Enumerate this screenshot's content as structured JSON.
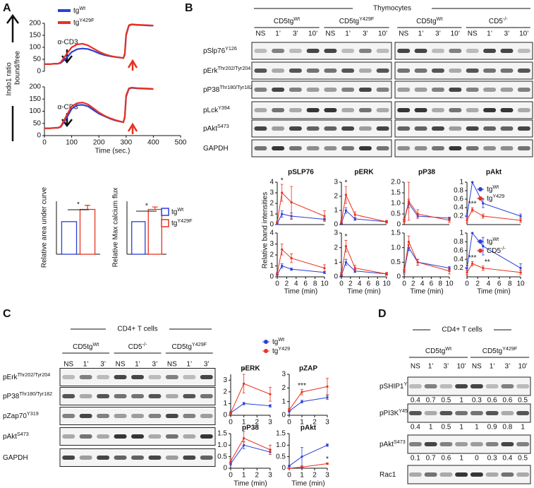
{
  "panel_labels": [
    "A",
    "B",
    "C",
    "D"
  ],
  "chart_data": [
    {
      "type": "line",
      "y_label": "Indo1 ratio",
      "y_label_sub": "bound/free",
      "annotation": "α-CD3",
      "x": [
        0,
        20,
        40,
        50,
        60,
        80,
        100,
        120,
        140,
        160,
        180,
        200,
        220,
        240,
        260,
        280,
        290,
        295,
        300,
        310,
        320,
        340,
        360,
        380,
        400
      ],
      "xlim": [
        0,
        500
      ],
      "ylim": [
        0,
        200
      ],
      "yticks": [
        0,
        50,
        100,
        150,
        200
      ],
      "series": [
        {
          "name": "tg",
          "name_sup": "Wt",
          "color": "#2b3fd9",
          "values": [
            30,
            30,
            32,
            32,
            35,
            55,
            80,
            92,
            95,
            93,
            85,
            75,
            68,
            63,
            60,
            57,
            55,
            70,
            150,
            190,
            195,
            193,
            192,
            191,
            190
          ]
        },
        {
          "name": "tg",
          "name_sup": "Y429F",
          "color": "#e8321f",
          "values": [
            30,
            30,
            32,
            32,
            38,
            70,
            100,
            112,
            115,
            108,
            95,
            82,
            72,
            65,
            60,
            57,
            55,
            75,
            155,
            192,
            196,
            194,
            193,
            192,
            191
          ]
        }
      ]
    },
    {
      "type": "line",
      "x_label": "Time (sec.)",
      "annotation": "α-CD3",
      "x": [
        0,
        20,
        40,
        50,
        60,
        80,
        100,
        120,
        140,
        160,
        180,
        200,
        220,
        240,
        260,
        280,
        290,
        295,
        300,
        310,
        320,
        340,
        360,
        380,
        400
      ],
      "xlim": [
        0,
        500
      ],
      "xticks": [
        0,
        100,
        200,
        300,
        400,
        500
      ],
      "ylim": [
        0,
        200
      ],
      "yticks": [
        0,
        50,
        100,
        150,
        200
      ],
      "series": [
        {
          "color": "#2b3fd9",
          "values": [
            30,
            30,
            32,
            32,
            36,
            70,
            110,
            125,
            126,
            120,
            105,
            90,
            80,
            70,
            62,
            57,
            55,
            75,
            160,
            192,
            196,
            194,
            193,
            192,
            191
          ]
        },
        {
          "color": "#e8321f",
          "values": [
            30,
            30,
            32,
            32,
            38,
            80,
            120,
            133,
            136,
            128,
            112,
            95,
            82,
            72,
            64,
            58,
            55,
            78,
            165,
            194,
            197,
            195,
            194,
            193,
            192
          ]
        }
      ]
    },
    {
      "type": "bar",
      "y_label": "Relative area under curve",
      "annotations": [
        "*"
      ],
      "categories": [
        null
      ],
      "ylim": [
        60,
        125
      ],
      "series": [
        {
          "color": "#2b3fd9",
          "values": [
            100
          ],
          "errors": [
            0
          ]
        },
        {
          "color": "#e8321f",
          "values": [
            115
          ],
          "errors": [
            5
          ]
        }
      ]
    },
    {
      "type": "bar",
      "y_label": "Relative Max calcium flux",
      "annotations": [
        "*"
      ],
      "categories": [
        null
      ],
      "ylim": [
        60,
        125
      ],
      "series": [
        {
          "name": "tg",
          "name_sup": "Wt",
          "color": "#2b3fd9",
          "values": [
            100
          ],
          "errors": [
            0
          ]
        },
        {
          "name": "tg",
          "name_sup": "Y429F",
          "color": "#e8321f",
          "values": [
            115
          ],
          "errors": [
            3
          ]
        }
      ]
    },
    {
      "type": "line",
      "title": "pSLP76",
      "y_label": "Relative band intensities",
      "annotations": [
        "*"
      ],
      "x": [
        0,
        1,
        3,
        10
      ],
      "xlim": [
        0,
        10
      ],
      "ylim": [
        0,
        4
      ],
      "yticks": [
        0,
        1,
        2,
        3,
        4
      ],
      "series": [
        {
          "color": "#2b3fd9",
          "values": [
            0.1,
            1.0,
            0.8,
            0.5
          ],
          "errors": [
            0.1,
            0.3,
            0.3,
            0.1
          ]
        },
        {
          "color": "#e8321f",
          "values": [
            0.2,
            3.0,
            2.1,
            0.8
          ],
          "errors": [
            0.1,
            0.8,
            1.5,
            0.5
          ]
        }
      ]
    },
    {
      "type": "line",
      "title": "pERK",
      "annotations": [
        "*"
      ],
      "x": [
        0,
        1,
        3,
        10
      ],
      "xlim": [
        0,
        10
      ],
      "ylim": [
        0,
        3
      ],
      "yticks": [
        0,
        1,
        2,
        3
      ],
      "series": [
        {
          "color": "#2b3fd9",
          "values": [
            0.1,
            1.0,
            0.4,
            0.2
          ],
          "errors": [
            0.05,
            0.2,
            0.1,
            0.05
          ]
        },
        {
          "color": "#e8321f",
          "values": [
            0.2,
            2.1,
            0.7,
            0.2
          ],
          "errors": [
            0.1,
            0.6,
            0.2,
            0.1
          ]
        }
      ]
    },
    {
      "type": "line",
      "title": "pP38",
      "x": [
        0,
        1,
        3,
        10
      ],
      "xlim": [
        0,
        10
      ],
      "ylim": [
        0,
        2
      ],
      "yticks": [
        0,
        0.5,
        {
          "value": 1,
          "label": "1.0"
        },
        1.5,
        {
          "value": 2,
          "label": "2.0"
        }
      ],
      "series": [
        {
          "color": "#2b3fd9",
          "values": [
            0.2,
            1.0,
            0.4,
            0.3
          ],
          "errors": [
            0.05,
            0.2,
            0.1,
            0.05
          ]
        },
        {
          "color": "#e8321f",
          "values": [
            0.2,
            1.1,
            0.5,
            0.2
          ],
          "errors": [
            0.1,
            0.9,
            0.2,
            0.1
          ]
        }
      ]
    },
    {
      "type": "line",
      "title": "pAkt",
      "annotations": [
        "***"
      ],
      "x": [
        0,
        1,
        3,
        10
      ],
      "xlim": [
        0,
        10
      ],
      "ylim": [
        0,
        1
      ],
      "yticks": [
        0.2,
        0.4,
        0.6,
        0.8,
        1
      ],
      "series": [
        {
          "name": "tg",
          "name_sup": "Wt",
          "color": "#2b3fd9",
          "values": [
            0.2,
            1.0,
            0.5,
            0.2
          ],
          "errors": [
            0.05,
            0,
            0.1,
            0.05
          ]
        },
        {
          "name": "tg",
          "name_sup": "Y429",
          "color": "#e8321f",
          "values": [
            0.1,
            0.35,
            0.2,
            0.1
          ],
          "errors": [
            0.05,
            0.05,
            0.05,
            0.05
          ]
        }
      ]
    },
    {
      "type": "line",
      "x_label": "Time (min)",
      "x": [
        0,
        1,
        3,
        10
      ],
      "xlim": [
        0,
        10
      ],
      "xticks": [
        0,
        2,
        4,
        6,
        8,
        10
      ],
      "ylim": [
        0,
        4
      ],
      "yticks": [
        0,
        1,
        2,
        3,
        4
      ],
      "series": [
        {
          "color": "#2b3fd9",
          "values": [
            0.2,
            1.0,
            0.7,
            0.4
          ],
          "errors": [
            0.05,
            0.2,
            0.1,
            0.1
          ]
        },
        {
          "color": "#e8321f",
          "values": [
            0.3,
            2.5,
            1.7,
            0.8
          ],
          "errors": [
            0.1,
            0.5,
            0.4,
            0.3
          ]
        }
      ]
    },
    {
      "type": "line",
      "x_label": "Time (min)",
      "annotations": [
        "*"
      ],
      "x": [
        0,
        1,
        3,
        10
      ],
      "xlim": [
        0,
        10
      ],
      "xticks": [
        0,
        2,
        4,
        6,
        8,
        10
      ],
      "ylim": [
        0,
        3
      ],
      "yticks": [
        0,
        1,
        2,
        3
      ],
      "series": [
        {
          "color": "#2b3fd9",
          "values": [
            0.1,
            1.0,
            0.4,
            0.2
          ],
          "errors": [
            0.05,
            0.2,
            0.1,
            0.05
          ]
        },
        {
          "color": "#e8321f",
          "values": [
            0.2,
            2.1,
            0.6,
            0.2
          ],
          "errors": [
            0.1,
            0.4,
            0.2,
            0.1
          ]
        }
      ]
    },
    {
      "type": "line",
      "x_label": "Time (min)",
      "x": [
        0,
        1,
        3,
        10
      ],
      "xlim": [
        0,
        10
      ],
      "xticks": [
        0,
        2,
        4,
        6,
        8,
        10
      ],
      "ylim": [
        0,
        1.5
      ],
      "yticks": [
        0,
        0.5,
        {
          "value": 1,
          "label": "1.0"
        },
        1.5
      ],
      "series": [
        {
          "color": "#2b3fd9",
          "values": [
            0.2,
            1.0,
            0.5,
            0.3
          ],
          "errors": [
            0.05,
            0.1,
            0.1,
            0.05
          ]
        },
        {
          "color": "#e8321f",
          "values": [
            0.2,
            1.2,
            0.5,
            0.2
          ],
          "errors": [
            0.1,
            0.2,
            0.1,
            0.1
          ]
        }
      ]
    },
    {
      "type": "line",
      "x_label": "Time (min)",
      "annotations": [
        "***",
        "**"
      ],
      "x": [
        0,
        1,
        3,
        10
      ],
      "xlim": [
        0,
        10
      ],
      "xticks": [
        0,
        2,
        4,
        6,
        8,
        10
      ],
      "ylim": [
        0,
        1
      ],
      "yticks": [
        0.2,
        0.4,
        0.6,
        0.8,
        1
      ],
      "series": [
        {
          "name": "tg",
          "name_sup": "Wt",
          "color": "#2b3fd9",
          "values": [
            0.2,
            1.0,
            0.7,
            0.2
          ],
          "errors": [
            0.05,
            0,
            0.2,
            0.1
          ]
        },
        {
          "name": "CD5",
          "name_sup": "-/-",
          "color": "#e8321f",
          "values": [
            0.1,
            0.3,
            0.2,
            0.1
          ],
          "errors": [
            0.05,
            0.05,
            0.05,
            0.05
          ]
        }
      ]
    },
    {
      "type": "line",
      "title": "pERK",
      "annotations": [
        "*"
      ],
      "x": [
        0,
        1,
        3
      ],
      "xlim": [
        0,
        3
      ],
      "xticks": [
        0,
        1,
        2,
        3
      ],
      "ylim": [
        0,
        3.5
      ],
      "yticks": [
        0,
        1,
        2,
        3
      ],
      "series": [
        {
          "color": "#2b3fd9",
          "values": [
            0.2,
            1.0,
            0.8
          ],
          "errors": [
            0.05,
            0.1,
            0.1
          ]
        },
        {
          "color": "#e8321f",
          "values": [
            0.2,
            2.7,
            1.8
          ],
          "errors": [
            0.1,
            0.8,
            0.6
          ]
        }
      ]
    },
    {
      "type": "line",
      "title": "pZAP",
      "annotations": [
        "***"
      ],
      "x": [
        0,
        1,
        3
      ],
      "xlim": [
        0,
        3
      ],
      "xticks": [
        0,
        1,
        2,
        3
      ],
      "ylim": [
        0,
        3
      ],
      "yticks": [
        0,
        1,
        2,
        3
      ],
      "series": [
        {
          "name": "tg",
          "name_sup": "Wt",
          "color": "#2b3fd9",
          "values": [
            0.3,
            1.0,
            1.3
          ],
          "errors": [
            0.05,
            0.1,
            0.15
          ]
        },
        {
          "name": "tg",
          "name_sup": "Y429",
          "color": "#e8321f",
          "values": [
            0.4,
            1.7,
            2.1
          ],
          "errors": [
            0.1,
            0.2,
            0.6
          ]
        }
      ]
    },
    {
      "type": "line",
      "title": "pP38",
      "x_label": "Time (min)",
      "x": [
        0,
        1,
        3
      ],
      "xlim": [
        0,
        3
      ],
      "xticks": [
        0,
        1,
        2,
        3
      ],
      "ylim": [
        0,
        1.5
      ],
      "yticks": [
        0,
        0.5,
        {
          "value": 1,
          "label": "1.0"
        },
        1.5
      ],
      "series": [
        {
          "color": "#2b3fd9",
          "values": [
            0.2,
            1.0,
            0.7
          ],
          "errors": [
            0.05,
            0.15,
            0.1
          ]
        },
        {
          "color": "#e8321f",
          "values": [
            0.3,
            1.3,
            0.8
          ],
          "errors": [
            0.1,
            0.3,
            0.2
          ]
        }
      ]
    },
    {
      "type": "line",
      "title": "pAkt",
      "x_label": "Time (min)",
      "annotations": [
        "*"
      ],
      "x": [
        0,
        1,
        3
      ],
      "xlim": [
        0,
        3
      ],
      "xticks": [
        0,
        1,
        2,
        3
      ],
      "ylim": [
        0,
        1.5
      ],
      "yticks": [
        0,
        0.5,
        {
          "value": 1,
          "label": "1.0"
        },
        1.5
      ],
      "series": [
        {
          "color": "#2b3fd9",
          "values": [
            0.1,
            0.5,
            1.0
          ],
          "errors": [
            0.02,
            0.4,
            0.05
          ]
        },
        {
          "color": "#e8321f",
          "values": [
            0.0,
            0.05,
            0.2
          ],
          "errors": [
            0.01,
            0.02,
            0.03
          ]
        }
      ]
    }
  ],
  "blots": {
    "B": {
      "header": "Thymocytes",
      "groups": [
        {
          "text": "CD5tg",
          "sup": "Wt"
        },
        {
          "text": "CD5tg",
          "sup": "Y429F"
        },
        {
          "text": "CD5tg",
          "sup": "Wt"
        },
        {
          "text": "CD5",
          "sup": "-/-"
        }
      ],
      "lanes": [
        "NS",
        "1’",
        "3’",
        "10’",
        "NS",
        "1’",
        "3’",
        "10’",
        "NS",
        "1’",
        "3’",
        "10’",
        "NS",
        "1’",
        "3’",
        "10’"
      ],
      "rows": [
        {
          "text": "pSlp76",
          "sup": "Y126"
        },
        {
          "text": "pErk",
          "sup": "Thr202/Tyr204"
        },
        {
          "text": "pP38",
          "sup": "Thr180/Tyr182"
        },
        {
          "text": "pLck",
          "sup": "Y394"
        },
        {
          "text": "pAkt",
          "sup": "S473"
        },
        {
          "text": "GAPDH"
        }
      ]
    },
    "C": {
      "header": "CD4+ T cells",
      "groups": [
        {
          "text": "CD5tg",
          "sup": "Wt"
        },
        {
          "text": "CD5",
          "sup": "-/-"
        },
        {
          "text": "CD5tg",
          "sup": "Y429F"
        }
      ],
      "lanes": [
        "NS",
        "1’",
        "3’",
        "NS",
        "1’",
        "3’",
        "NS",
        "1’",
        "3’"
      ],
      "rows": [
        {
          "text": "pErk",
          "sup": "Thr202/Tyr204"
        },
        {
          "text": "pP38",
          "sup": "Thr180/Tyr182"
        },
        {
          "text": "pZap70",
          "sup": "Y319"
        },
        {
          "text": "pAkt",
          "sup": "S473"
        },
        {
          "text": "GAPDH"
        }
      ]
    },
    "D": {
      "header": "CD4+ T cells",
      "groups": [
        {
          "text": "CD5tg",
          "sup": "Wt"
        },
        {
          "text": "CD5tg",
          "sup": "Y429F"
        }
      ],
      "lanes": [
        "NS",
        "1’",
        "3’",
        "10’",
        "NS",
        "1’",
        "3’",
        "10’"
      ],
      "rows": [
        {
          "text": "pSHIP1",
          "sup": "Y1020",
          "quant": [
            0.4,
            0.7,
            0.5,
            1,
            0.3,
            0.6,
            0.6,
            0.5
          ]
        },
        {
          "text": "pPI3K",
          "sup": "Y458",
          "quant": [
            0.4,
            1,
            0.5,
            1,
            1,
            0.9,
            0.8,
            1
          ]
        },
        {
          "text": "pAkt",
          "sup": "S473",
          "quant": [
            0.1,
            0.7,
            0.6,
            1,
            0,
            0.3,
            0.4,
            0.5
          ]
        },
        {
          "text": "Rac1"
        }
      ]
    }
  }
}
